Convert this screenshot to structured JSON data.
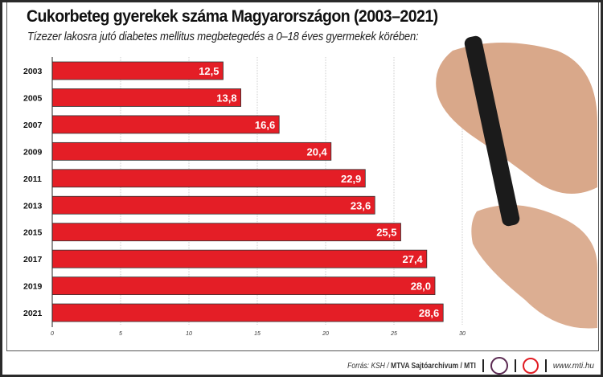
{
  "chart_data": {
    "type": "bar",
    "orientation": "horizontal",
    "title": "Cukorbeteg gyerekek száma Magyarországon (2003–2021)",
    "subtitle": "Tízezer lakosra jutó diabetes mellitus megbetegedés a 0–18 éves gyermekek körében:",
    "categories": [
      "2003",
      "2005",
      "2007",
      "2009",
      "2011",
      "2013",
      "2015",
      "2017",
      "2019",
      "2021"
    ],
    "values": [
      12.5,
      13.8,
      16.6,
      20.4,
      22.9,
      23.6,
      25.5,
      27.4,
      28.0,
      28.6
    ],
    "value_labels": [
      "12,5",
      "13,8",
      "16,6",
      "20,4",
      "22,9",
      "23,6",
      "25,5",
      "27,4",
      "28,0",
      "28,6"
    ],
    "xlim": [
      0,
      30
    ],
    "xticks": [
      0,
      5,
      10,
      15,
      20,
      25,
      30
    ],
    "grid": true,
    "bar_color": "#e41e26"
  },
  "footer": {
    "source_prefix": "Forrás: KSH / ",
    "source_bold": "MTVA Sajtóarchívum / MTI",
    "logo_text": "MTVA",
    "url": "www.mti.hu"
  }
}
